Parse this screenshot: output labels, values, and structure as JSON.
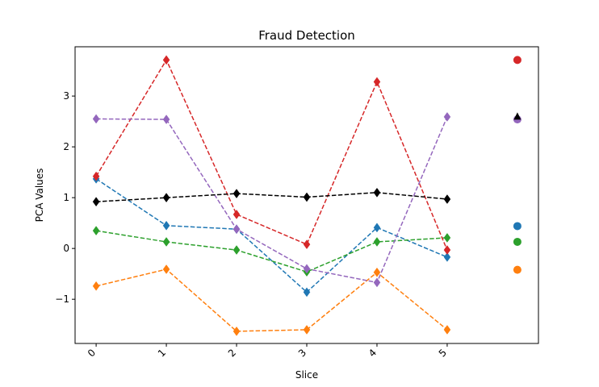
{
  "chart_data": {
    "type": "line",
    "title": "Fraud Detection",
    "xlabel": "Slice",
    "ylabel": "PCA Values",
    "x": [
      0,
      1,
      2,
      3,
      4,
      5
    ],
    "x_tick_labels": [
      "0",
      "1",
      "2",
      "3",
      "4",
      "5"
    ],
    "y_ticks": [
      -1,
      0,
      1,
      2,
      3
    ],
    "y_tick_labels": [
      "−1",
      "0",
      "1",
      "2",
      "3"
    ],
    "xlim": [
      -0.3,
      6.3
    ],
    "ylim": [
      -1.87,
      3.97
    ],
    "grid": false,
    "legend": "none",
    "line_style": "dashed",
    "marker": "diamond",
    "series": [
      {
        "color": "#1f77b4",
        "values": [
          1.37,
          0.45,
          0.38,
          -0.86,
          0.41,
          -0.17
        ],
        "end_marker": {
          "shape": "circle",
          "value": 0.44
        }
      },
      {
        "color": "#ff7f0e",
        "values": [
          -0.74,
          -0.41,
          -1.63,
          -1.6,
          -0.47,
          -1.6
        ],
        "end_marker": {
          "shape": "circle",
          "value": -0.42
        }
      },
      {
        "color": "#2ca02c",
        "values": [
          0.35,
          0.13,
          -0.03,
          -0.46,
          0.13,
          0.21
        ],
        "end_marker": {
          "shape": "circle",
          "value": 0.13
        }
      },
      {
        "color": "#d62728",
        "values": [
          1.42,
          3.71,
          0.67,
          0.08,
          3.28,
          -0.03
        ],
        "end_marker": {
          "shape": "circle",
          "value": 3.71
        }
      },
      {
        "color": "#9467bd",
        "values": [
          2.55,
          2.54,
          0.38,
          -0.4,
          -0.67,
          2.59
        ],
        "end_marker": {
          "shape": "circle",
          "value": 2.54
        }
      },
      {
        "color": "#000000",
        "values": [
          0.92,
          1.0,
          1.08,
          1.01,
          1.1,
          0.97
        ],
        "end_marker": {
          "shape": "triangle",
          "value": 2.6
        }
      }
    ]
  }
}
